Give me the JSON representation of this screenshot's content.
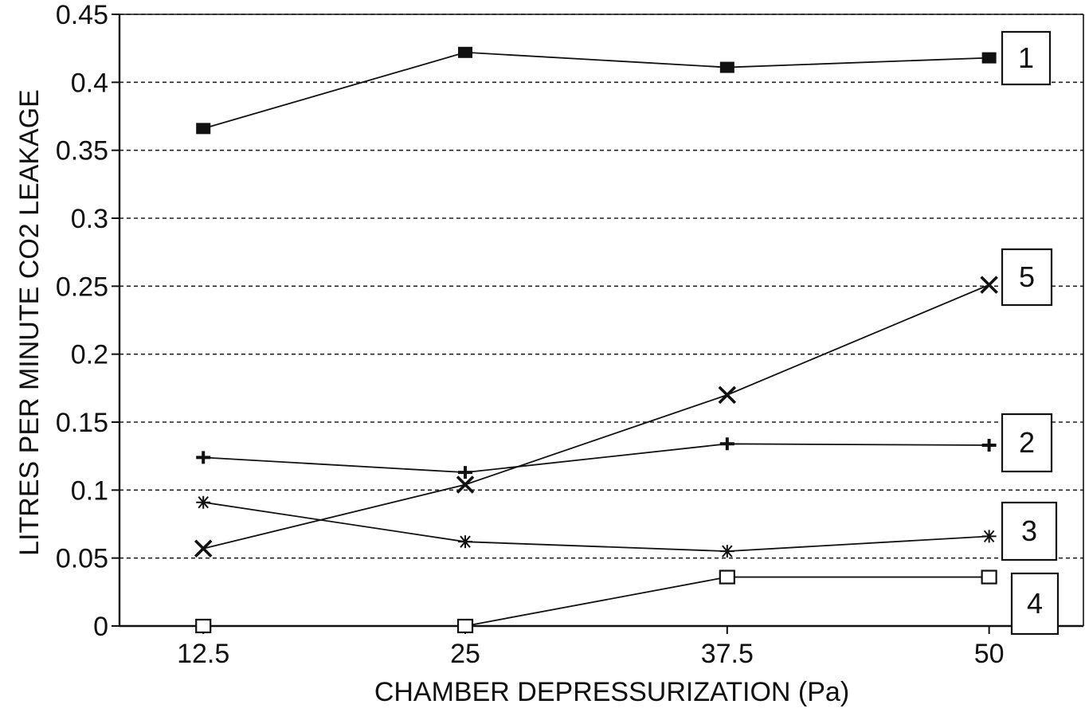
{
  "chart_data": {
    "type": "line",
    "title": "",
    "xlabel": "CHAMBER DEPRESSURIZATION (Pa)",
    "ylabel": "LITRES PER MINUTE CO2 LEAKAGE",
    "x": [
      12.5,
      25,
      37.5,
      50
    ],
    "x_tick_labels": [
      "12.5",
      "25",
      "37.5",
      "50"
    ],
    "y_tick_labels": [
      "0",
      "0.05",
      "0.1",
      "0.15",
      "0.2",
      "0.25",
      "0.3",
      "0.35",
      "0.4",
      "0.45"
    ],
    "xlim": [
      8.5,
      54.5
    ],
    "ylim": [
      0,
      0.45
    ],
    "grid": "horizontal dashed",
    "series": [
      {
        "name": "1",
        "marker": "filled-square",
        "values": [
          0.366,
          0.422,
          0.411,
          0.418
        ]
      },
      {
        "name": "2",
        "marker": "plus",
        "values": [
          0.124,
          0.113,
          0.134,
          0.133
        ]
      },
      {
        "name": "3",
        "marker": "asterisk",
        "values": [
          0.091,
          0.062,
          0.055,
          0.066
        ]
      },
      {
        "name": "4",
        "marker": "open-square",
        "values": [
          0.0,
          0.0,
          0.036,
          0.036
        ]
      },
      {
        "name": "5",
        "marker": "cross",
        "values": [
          0.057,
          0.104,
          0.17,
          0.251
        ]
      }
    ]
  }
}
